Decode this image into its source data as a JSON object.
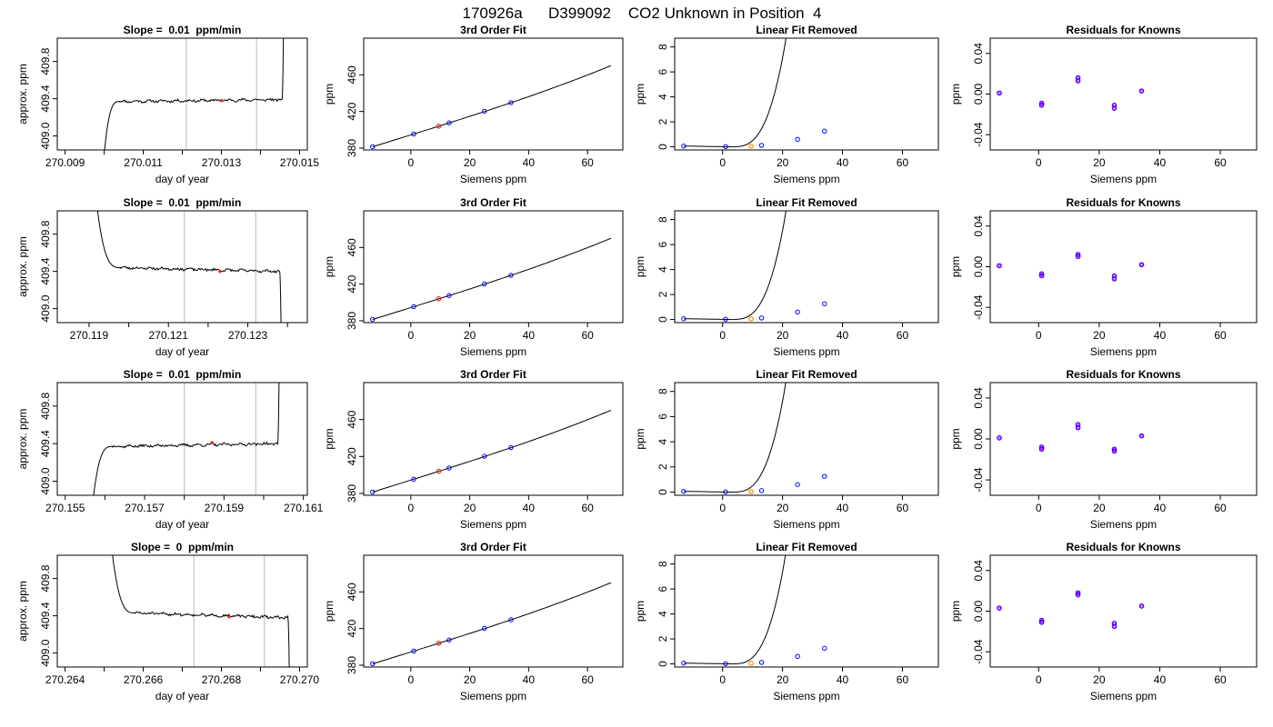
{
  "page_title": "170926a      D399092    CO2 Unknown in Position  4",
  "colors": {
    "trace": "#000000",
    "band_lines": "#c8c8c8",
    "unknown_point": "#e0301e",
    "unknown_point_linear": "#ff8c00",
    "known_point_outline": "#0000ff",
    "known_point_inner": "#ff00ff"
  },
  "rows": [
    {
      "timeseries": {
        "type": "line",
        "title": "Slope =  0.01  ppm/min",
        "xlabel": "day of year",
        "ylabel": "approx. ppm",
        "xlim": [
          270.0088,
          270.0152
        ],
        "ylim": [
          408.85,
          410.05
        ],
        "xticks": [
          270.009,
          270.01,
          270.011,
          270.012,
          270.013,
          270.014,
          270.015
        ],
        "xtick_labels": [
          "270.009",
          "",
          "270.011",
          "",
          "270.013",
          "",
          "270.015"
        ],
        "yticks": [
          409.0,
          409.4,
          409.8
        ],
        "ytick_labels": [
          "409.0",
          "409.4",
          "409.8"
        ],
        "vlines": [
          270.0121,
          270.0139
        ],
        "marker": {
          "x": 270.013,
          "y": 409.38
        },
        "trace": {
          "start_level": 409.37,
          "start_y": 408.8,
          "start_x": 270.01,
          "settle_x": 270.0104,
          "end_level": 409.39,
          "end_x": 270.01455,
          "end_y": 410.1,
          "end_dir": "up",
          "amp": 0.012,
          "seed": 11
        }
      },
      "fit": {
        "type": "line",
        "title": "3rd Order Fit",
        "xlabel": "Siemens ppm",
        "ylabel": "ppm",
        "xlim": [
          -16,
          72
        ],
        "ylim": [
          378,
          500
        ],
        "xticks": [
          0,
          20,
          40,
          60
        ],
        "yticks": [
          380,
          420,
          460
        ],
        "curve": {
          "x_from": -13,
          "x_to": 68,
          "a": 394.4,
          "b": 1.0,
          "c": 0.0003,
          "d": 2e-05
        },
        "knowns": [
          {
            "x": -13,
            "y": 381.5
          },
          {
            "x": 1,
            "y": 395.4
          },
          {
            "x": 13,
            "y": 407.5
          },
          {
            "x": 25,
            "y": 420.2
          },
          {
            "x": 34,
            "y": 429.6
          }
        ],
        "unknown": {
          "x": 9.5,
          "y": 404.0
        }
      },
      "linear_removed": {
        "type": "line",
        "title": "Linear Fit Removed",
        "xlabel": "Siemens ppm",
        "ylabel": "ppm",
        "xlim": [
          -16,
          72
        ],
        "ylim": [
          -0.25,
          8.7
        ],
        "xticks": [
          0,
          20,
          40,
          60
        ],
        "yticks": [
          0,
          2,
          4,
          6,
          8
        ],
        "curve": {
          "x_from": -13,
          "x_to": 68,
          "xmin": 3,
          "p": 0.5,
          "k": 0.00145
        },
        "knowns": [
          {
            "x": -13,
            "y": 0.06
          },
          {
            "x": 1,
            "y": 0.02
          },
          {
            "x": 13,
            "y": 0.12
          },
          {
            "x": 25,
            "y": 0.6
          },
          {
            "x": 34,
            "y": 1.25
          }
        ],
        "unknown": {
          "x": 9.5,
          "y": 0.05
        }
      },
      "residuals": {
        "type": "scatter",
        "title": "Residuals for Knowns",
        "xlabel": "Siemens ppm",
        "ylabel": "ppm",
        "xlim": [
          -16,
          72
        ],
        "ylim": [
          -0.055,
          0.055
        ],
        "xticks": [
          0,
          20,
          40,
          60
        ],
        "yticks": [
          -0.04,
          0.0,
          0.04
        ],
        "ytick_labels": [
          "-0.04",
          "0.00",
          "0.04"
        ],
        "points": [
          {
            "x": -13,
            "y": 0.001
          },
          {
            "x": 1,
            "y": -0.009
          },
          {
            "x": 1,
            "y": -0.011
          },
          {
            "x": 13,
            "y": 0.016
          },
          {
            "x": 13,
            "y": 0.013
          },
          {
            "x": 25,
            "y": -0.011
          },
          {
            "x": 25,
            "y": -0.014
          },
          {
            "x": 34,
            "y": 0.003
          }
        ]
      }
    },
    {
      "timeseries": {
        "type": "line",
        "title": "Slope =  0.01  ppm/min",
        "xlabel": "day of year",
        "ylabel": "approx. ppm",
        "xlim": [
          270.1182,
          270.1245
        ],
        "ylim": [
          408.85,
          410.05
        ],
        "xticks": [
          270.119,
          270.12,
          270.121,
          270.122,
          270.123,
          270.124
        ],
        "xtick_labels": [
          "270.119",
          "",
          "270.121",
          "",
          "270.123",
          ""
        ],
        "yticks": [
          409.0,
          409.4,
          409.8
        ],
        "ytick_labels": [
          "409.0",
          "409.4",
          "409.8"
        ],
        "vlines": [
          270.1214,
          270.1232
        ],
        "marker": {
          "x": 270.1223,
          "y": 409.4
        },
        "trace": {
          "start_level": 409.44,
          "start_y": 410.1,
          "start_x": 270.1192,
          "settle_x": 270.1198,
          "end_level": 409.4,
          "end_x": 270.1238,
          "end_y": 408.8,
          "end_dir": "down",
          "amp": 0.012,
          "seed": 23
        }
      },
      "fit": {
        "type": "line",
        "title": "3rd Order Fit",
        "xlabel": "Siemens ppm",
        "ylabel": "ppm",
        "xlim": [
          -16,
          72
        ],
        "ylim": [
          378,
          500
        ],
        "xticks": [
          0,
          20,
          40,
          60
        ],
        "yticks": [
          380,
          420,
          460
        ],
        "curve": {
          "x_from": -13,
          "x_to": 68,
          "a": 394.4,
          "b": 1.0,
          "c": 0.0003,
          "d": 2e-05
        },
        "knowns": [
          {
            "x": -13,
            "y": 381.5
          },
          {
            "x": 1,
            "y": 395.4
          },
          {
            "x": 13,
            "y": 407.5
          },
          {
            "x": 25,
            "y": 420.2
          },
          {
            "x": 34,
            "y": 429.6
          }
        ],
        "unknown": {
          "x": 9.5,
          "y": 404.0
        }
      },
      "linear_removed": {
        "type": "line",
        "title": "Linear Fit Removed",
        "xlabel": "Siemens ppm",
        "ylabel": "ppm",
        "xlim": [
          -16,
          72
        ],
        "ylim": [
          -0.25,
          8.7
        ],
        "xticks": [
          0,
          20,
          40,
          60
        ],
        "yticks": [
          0,
          2,
          4,
          6,
          8
        ],
        "curve": {
          "x_from": -13,
          "x_to": 68,
          "xmin": 3,
          "p": 0.5,
          "k": 0.00145
        },
        "knowns": [
          {
            "x": -13,
            "y": 0.06
          },
          {
            "x": 1,
            "y": 0.02
          },
          {
            "x": 13,
            "y": 0.12
          },
          {
            "x": 25,
            "y": 0.6
          },
          {
            "x": 34,
            "y": 1.25
          }
        ],
        "unknown": {
          "x": 9.5,
          "y": 0.05
        }
      },
      "residuals": {
        "type": "scatter",
        "title": "Residuals for Knowns",
        "xlabel": "Siemens ppm",
        "ylabel": "ppm",
        "xlim": [
          -16,
          72
        ],
        "ylim": [
          -0.055,
          0.055
        ],
        "xticks": [
          0,
          20,
          40,
          60
        ],
        "yticks": [
          -0.04,
          0.0,
          0.04
        ],
        "ytick_labels": [
          "-0.04",
          "0.00",
          "0.04"
        ],
        "points": [
          {
            "x": -13,
            "y": 0.001
          },
          {
            "x": 1,
            "y": -0.007
          },
          {
            "x": 1,
            "y": -0.009
          },
          {
            "x": 13,
            "y": 0.012
          },
          {
            "x": 13,
            "y": 0.01
          },
          {
            "x": 25,
            "y": -0.009
          },
          {
            "x": 25,
            "y": -0.012
          },
          {
            "x": 34,
            "y": 0.002
          }
        ]
      }
    },
    {
      "timeseries": {
        "type": "line",
        "title": "Slope =  0.01  ppm/min",
        "xlabel": "day of year",
        "ylabel": "approx. ppm",
        "xlim": [
          270.1548,
          270.1611
        ],
        "ylim": [
          408.85,
          410.05
        ],
        "xticks": [
          270.155,
          270.156,
          270.157,
          270.158,
          270.159,
          270.16,
          270.161
        ],
        "xtick_labels": [
          "270.155",
          "",
          "270.157",
          "",
          "270.159",
          "",
          "270.161"
        ],
        "yticks": [
          409.0,
          409.4,
          409.8
        ],
        "ytick_labels": [
          "409.0",
          "409.4",
          "409.8"
        ],
        "vlines": [
          270.158,
          270.1598
        ],
        "marker": {
          "x": 270.1587,
          "y": 409.41
        },
        "trace": {
          "start_level": 409.37,
          "start_y": 408.8,
          "start_x": 270.1557,
          "settle_x": 270.1562,
          "end_level": 409.4,
          "end_x": 270.16035,
          "end_y": 410.1,
          "end_dir": "up",
          "amp": 0.012,
          "seed": 37
        }
      },
      "fit": {
        "type": "line",
        "title": "3rd Order Fit",
        "xlabel": "Siemens ppm",
        "ylabel": "ppm",
        "xlim": [
          -16,
          72
        ],
        "ylim": [
          378,
          500
        ],
        "xticks": [
          0,
          20,
          40,
          60
        ],
        "yticks": [
          380,
          420,
          460
        ],
        "curve": {
          "x_from": -13,
          "x_to": 68,
          "a": 394.4,
          "b": 1.0,
          "c": 0.0003,
          "d": 2e-05
        },
        "knowns": [
          {
            "x": -13,
            "y": 381.5
          },
          {
            "x": 1,
            "y": 395.4
          },
          {
            "x": 13,
            "y": 407.5
          },
          {
            "x": 25,
            "y": 420.2
          },
          {
            "x": 34,
            "y": 429.6
          }
        ],
        "unknown": {
          "x": 9.5,
          "y": 404.0
        }
      },
      "linear_removed": {
        "type": "line",
        "title": "Linear Fit Removed",
        "xlabel": "Siemens ppm",
        "ylabel": "ppm",
        "xlim": [
          -16,
          72
        ],
        "ylim": [
          -0.25,
          8.7
        ],
        "xticks": [
          0,
          20,
          40,
          60
        ],
        "yticks": [
          0,
          2,
          4,
          6,
          8
        ],
        "curve": {
          "x_from": -13,
          "x_to": 68,
          "xmin": 3,
          "p": 0.5,
          "k": 0.00147
        },
        "knowns": [
          {
            "x": -13,
            "y": 0.06
          },
          {
            "x": 1,
            "y": 0.02
          },
          {
            "x": 13,
            "y": 0.12
          },
          {
            "x": 25,
            "y": 0.6
          },
          {
            "x": 34,
            "y": 1.25
          }
        ],
        "unknown": {
          "x": 9.5,
          "y": 0.05
        }
      },
      "residuals": {
        "type": "scatter",
        "title": "Residuals for Knowns",
        "xlabel": "Siemens ppm",
        "ylabel": "ppm",
        "xlim": [
          -16,
          72
        ],
        "ylim": [
          -0.055,
          0.055
        ],
        "xticks": [
          0,
          20,
          40,
          60
        ],
        "yticks": [
          -0.04,
          0.0,
          0.04
        ],
        "ytick_labels": [
          "-0.04",
          "0.00",
          "0.04"
        ],
        "points": [
          {
            "x": -13,
            "y": 0.001
          },
          {
            "x": 1,
            "y": -0.008
          },
          {
            "x": 1,
            "y": -0.01
          },
          {
            "x": 13,
            "y": 0.014
          },
          {
            "x": 13,
            "y": 0.011
          },
          {
            "x": 25,
            "y": -0.01
          },
          {
            "x": 25,
            "y": -0.012
          },
          {
            "x": 34,
            "y": 0.003
          }
        ]
      }
    },
    {
      "timeseries": {
        "type": "line",
        "title": "Slope =  0  ppm/min",
        "xlabel": "day of year",
        "ylabel": "approx. ppm",
        "xlim": [
          270.2638,
          270.2702
        ],
        "ylim": [
          408.85,
          410.05
        ],
        "xticks": [
          270.264,
          270.265,
          270.266,
          270.267,
          270.268,
          270.269,
          270.27
        ],
        "xtick_labels": [
          "270.264",
          "",
          "270.266",
          "",
          "270.268",
          "",
          "270.270"
        ],
        "yticks": [
          409.0,
          409.4,
          409.8
        ],
        "ytick_labels": [
          "409.0",
          "409.4",
          "409.8"
        ],
        "vlines": [
          270.2673,
          270.2691
        ],
        "marker": {
          "x": 270.2682,
          "y": 409.39
        },
        "trace": {
          "start_level": 409.43,
          "start_y": 410.1,
          "start_x": 270.2652,
          "settle_x": 270.2658,
          "end_level": 409.38,
          "end_x": 270.2697,
          "end_y": 408.8,
          "end_dir": "down",
          "amp": 0.012,
          "seed": 51
        }
      },
      "fit": {
        "type": "line",
        "title": "3rd Order Fit",
        "xlabel": "Siemens ppm",
        "ylabel": "ppm",
        "xlim": [
          -16,
          72
        ],
        "ylim": [
          378,
          500
        ],
        "xticks": [
          0,
          20,
          40,
          60
        ],
        "yticks": [
          380,
          420,
          460
        ],
        "curve": {
          "x_from": -13,
          "x_to": 68,
          "a": 394.4,
          "b": 1.0,
          "c": 0.0003,
          "d": 2e-05
        },
        "knowns": [
          {
            "x": -13,
            "y": 381.5
          },
          {
            "x": 1,
            "y": 395.4
          },
          {
            "x": 13,
            "y": 407.5
          },
          {
            "x": 25,
            "y": 420.2
          },
          {
            "x": 34,
            "y": 429.6
          }
        ],
        "unknown": {
          "x": 9.5,
          "y": 404.0
        }
      },
      "linear_removed": {
        "type": "line",
        "title": "Linear Fit Removed",
        "xlabel": "Siemens ppm",
        "ylabel": "ppm",
        "xlim": [
          -16,
          72
        ],
        "ylim": [
          -0.25,
          8.7
        ],
        "xticks": [
          0,
          20,
          40,
          60
        ],
        "yticks": [
          0,
          2,
          4,
          6,
          8
        ],
        "curve": {
          "x_from": -13,
          "x_to": 68,
          "xmin": 3,
          "p": 0.5,
          "k": 0.0015
        },
        "knowns": [
          {
            "x": -13,
            "y": 0.06
          },
          {
            "x": 1,
            "y": 0.02
          },
          {
            "x": 13,
            "y": 0.12
          },
          {
            "x": 25,
            "y": 0.6
          },
          {
            "x": 34,
            "y": 1.25
          }
        ],
        "unknown": {
          "x": 9.5,
          "y": 0.05
        }
      },
      "residuals": {
        "type": "scatter",
        "title": "Residuals for Knowns",
        "xlabel": "Siemens ppm",
        "ylabel": "ppm",
        "xlim": [
          -16,
          72
        ],
        "ylim": [
          -0.055,
          0.055
        ],
        "xticks": [
          0,
          20,
          40,
          60
        ],
        "yticks": [
          -0.04,
          0.0,
          0.04
        ],
        "ytick_labels": [
          "-0.04",
          "0.00",
          "0.04"
        ],
        "points": [
          {
            "x": -13,
            "y": 0.003
          },
          {
            "x": 1,
            "y": -0.009
          },
          {
            "x": 1,
            "y": -0.011
          },
          {
            "x": 13,
            "y": 0.018
          },
          {
            "x": 13,
            "y": 0.016
          },
          {
            "x": 25,
            "y": -0.012
          },
          {
            "x": 25,
            "y": -0.015
          },
          {
            "x": 34,
            "y": 0.005
          }
        ]
      }
    }
  ]
}
